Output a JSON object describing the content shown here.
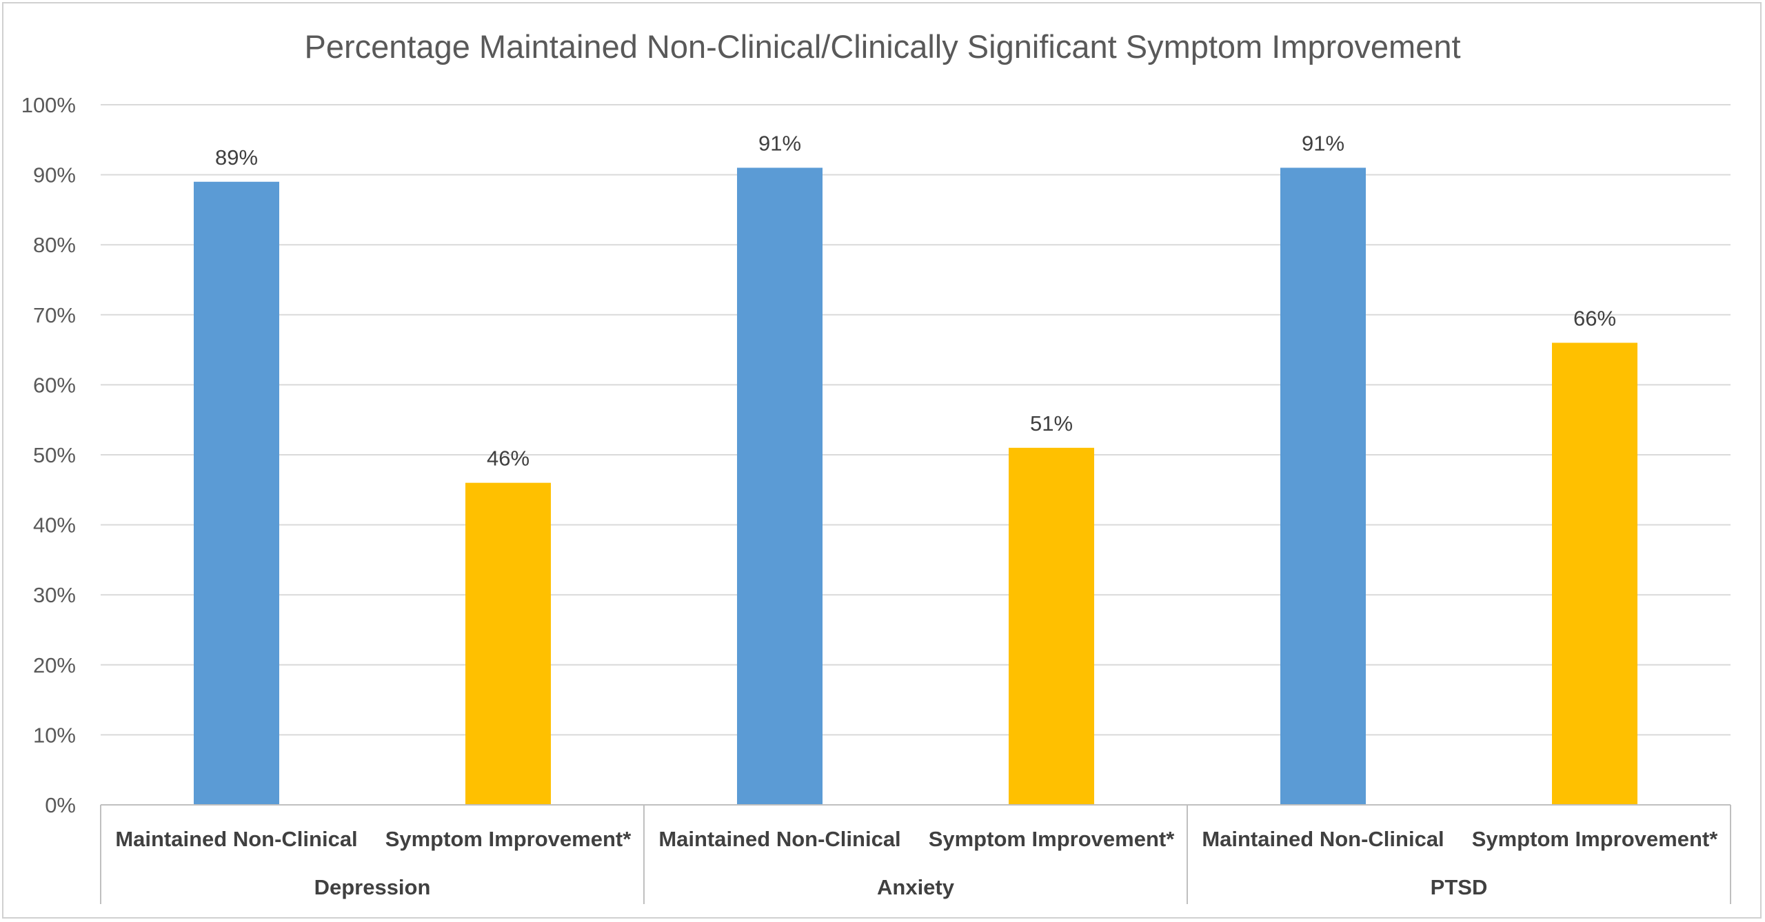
{
  "chart_data": {
    "type": "bar",
    "title": "Percentage Maintained Non-Clinical/Clinically Significant Symptom Improvement",
    "xlabel": "",
    "ylabel": "",
    "ylim": [
      0,
      100
    ],
    "yticks": [
      "0%",
      "10%",
      "20%",
      "30%",
      "40%",
      "50%",
      "60%",
      "70%",
      "80%",
      "90%",
      "100%"
    ],
    "grid": true,
    "legend": "none",
    "groups": [
      "Depression",
      "Anxiety",
      "PTSD"
    ],
    "categories": [
      {
        "group": "Depression",
        "label": "Maintained Non-Clinical",
        "value": 89,
        "data_label": "89%",
        "color": "#5B9BD5"
      },
      {
        "group": "Depression",
        "label": "Symptom Improvement*",
        "value": 46,
        "data_label": "46%",
        "color": "#FFC000"
      },
      {
        "group": "Anxiety",
        "label": "Maintained Non-Clinical",
        "value": 91,
        "data_label": "91%",
        "color": "#5B9BD5"
      },
      {
        "group": "Anxiety",
        "label": "Symptom Improvement*",
        "value": 51,
        "data_label": "51%",
        "color": "#FFC000"
      },
      {
        "group": "PTSD",
        "label": "Maintained Non-Clinical",
        "value": 91,
        "data_label": "91%",
        "color": "#5B9BD5"
      },
      {
        "group": "PTSD",
        "label": "Symptom Improvement*",
        "value": 66,
        "data_label": "66%",
        "color": "#FFC000"
      }
    ],
    "colors": {
      "gridline": "#d9d9d9",
      "axis": "#bfbfbf"
    }
  }
}
